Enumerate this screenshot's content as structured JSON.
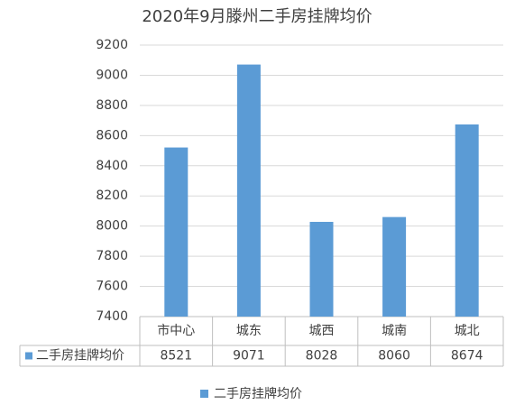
{
  "chart_data": {
    "type": "bar",
    "title": "2020年9月滕州二手房挂牌均价",
    "categories": [
      "市中心",
      "城东",
      "城西",
      "城南",
      "城北"
    ],
    "series": [
      {
        "name": "二手房挂牌均价",
        "color": "#5b9bd5",
        "values": [
          8521,
          9071,
          8028,
          8060,
          8674
        ]
      }
    ],
    "ylim": [
      7400,
      9200
    ],
    "yticks": [
      7400,
      7600,
      7800,
      8000,
      8200,
      8400,
      8600,
      8800,
      9000,
      9200
    ],
    "grid": true,
    "legend": "bottom",
    "data_table": true
  }
}
